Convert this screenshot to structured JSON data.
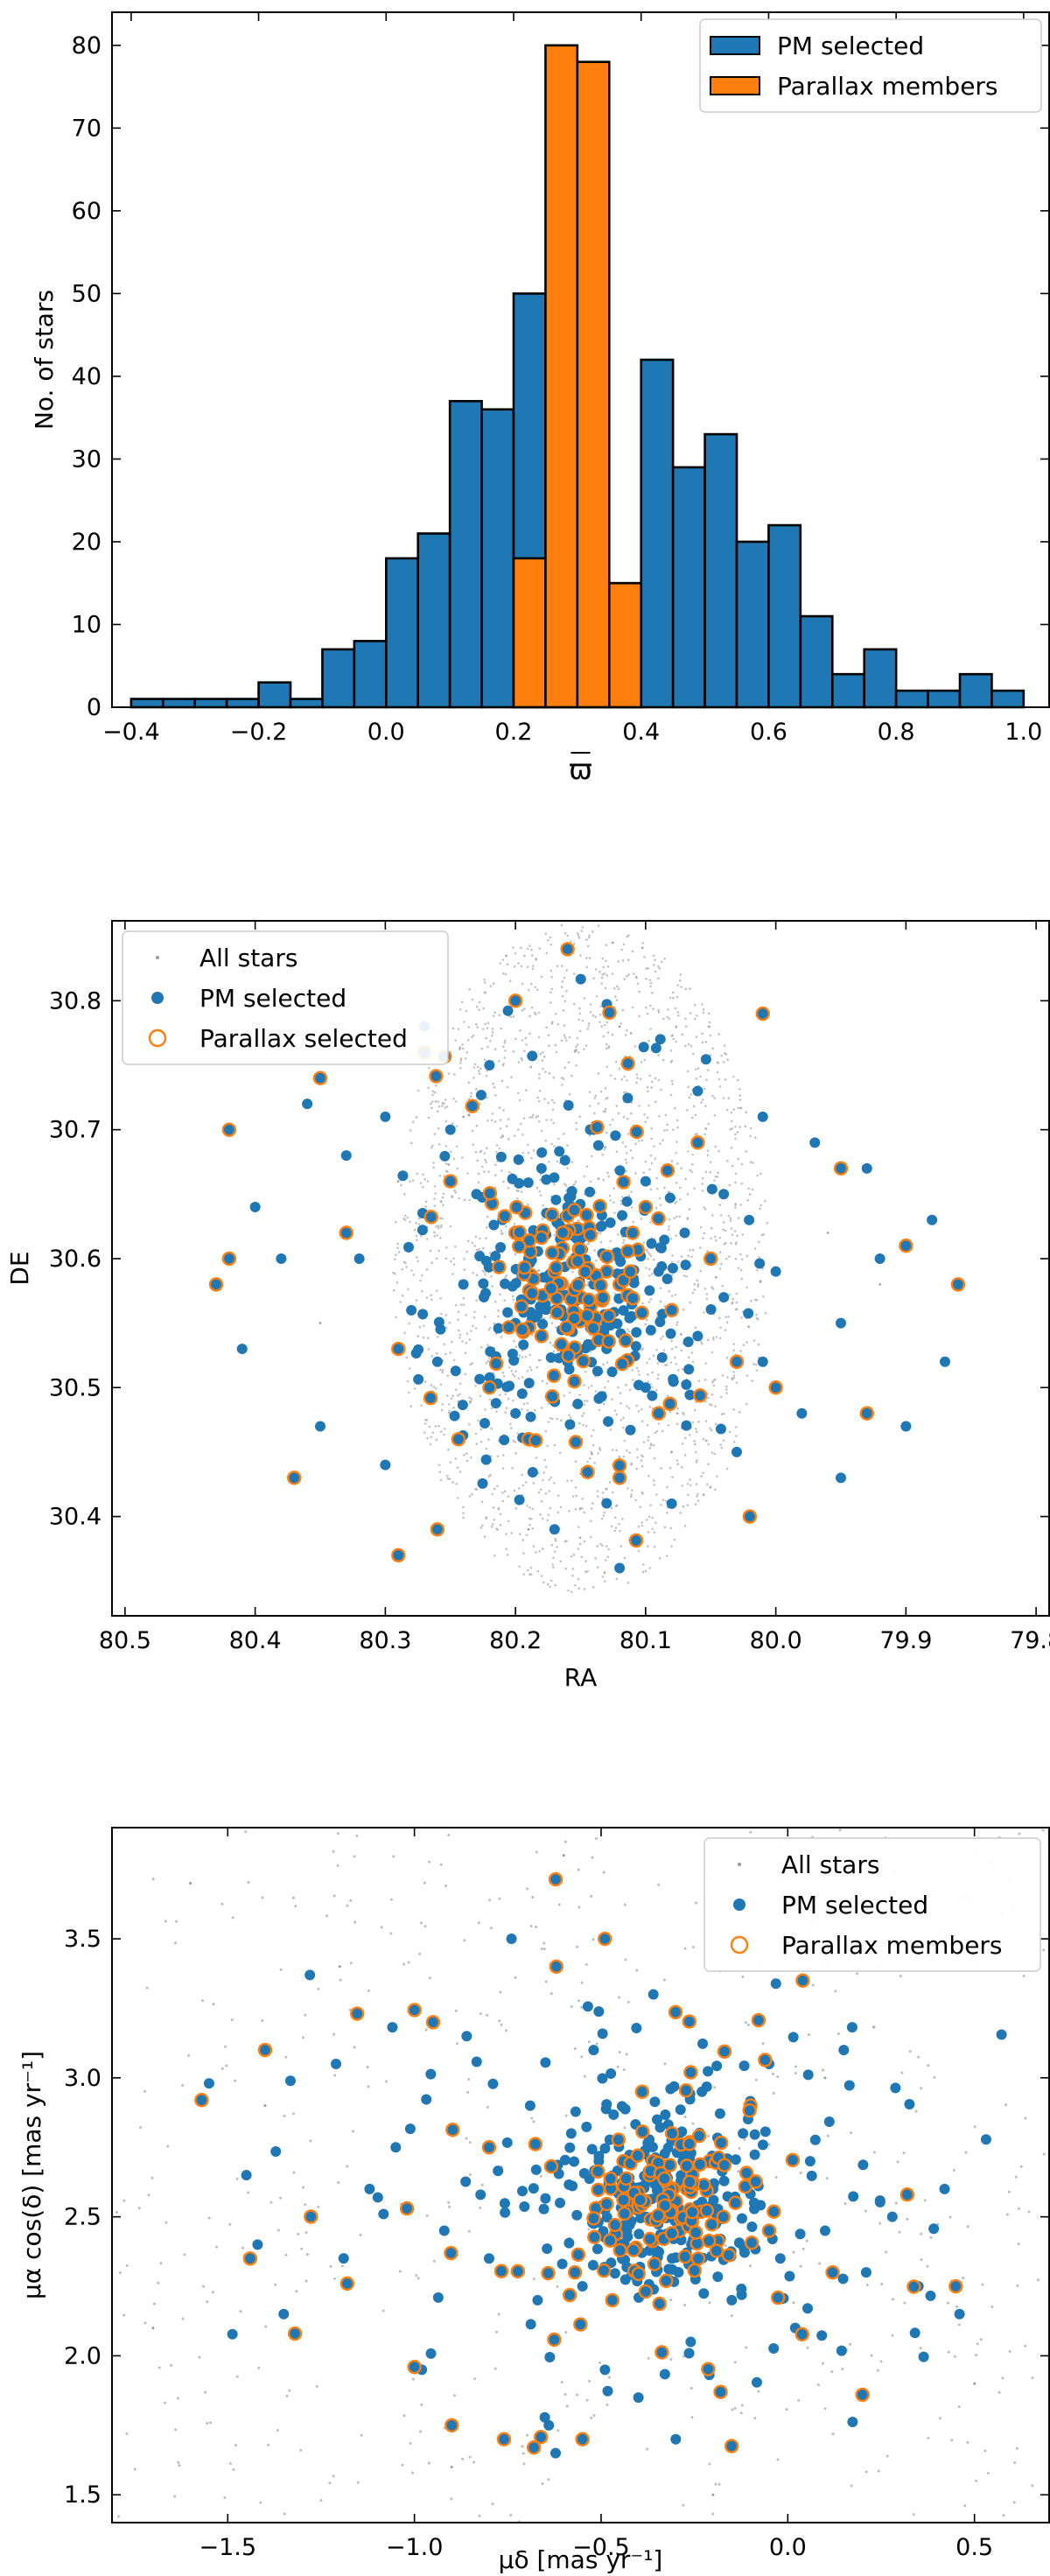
{
  "colors": {
    "blue": "#1f77b4",
    "orange": "#ff7f0e",
    "gray": "#999999"
  },
  "chart_data": [
    {
      "type": "bar",
      "subtype": "histogram",
      "xlabel": "ϖ",
      "ylabel": "No. of stars",
      "xlim": [
        -0.43,
        1.04
      ],
      "ylim": [
        0,
        84
      ],
      "x_ticks": [
        -0.4,
        -0.2,
        0.0,
        0.2,
        0.4,
        0.6,
        0.8,
        1.0
      ],
      "x_tick_labels": [
        "−0.4",
        "−0.2",
        "0.0",
        "0.2",
        "0.4",
        "0.6",
        "0.8",
        "1.0"
      ],
      "y_ticks": [
        0,
        10,
        20,
        30,
        40,
        50,
        60,
        70,
        80
      ],
      "bin_edges": [
        -0.4,
        -0.35,
        -0.3,
        -0.25,
        -0.2,
        -0.15,
        -0.1,
        -0.05,
        0.0,
        0.05,
        0.1,
        0.15,
        0.2,
        0.25,
        0.3,
        0.35,
        0.4,
        0.45,
        0.5,
        0.55,
        0.6,
        0.65,
        0.7,
        0.75,
        0.8,
        0.85,
        0.9,
        0.95,
        1.0
      ],
      "legend_position": "top-right",
      "series": [
        {
          "name": "PM selected",
          "color": "#1f77b4",
          "values": [
            1,
            1,
            1,
            1,
            3,
            1,
            7,
            8,
            18,
            21,
            37,
            36,
            50,
            18,
            15,
            15,
            42,
            29,
            33,
            20,
            22,
            11,
            4,
            7,
            2,
            2,
            4,
            2
          ]
        },
        {
          "name": "Parallax members",
          "color": "#ff7f0e",
          "values": [
            0,
            0,
            0,
            0,
            0,
            0,
            0,
            0,
            0,
            0,
            0,
            0,
            18,
            80,
            78,
            15,
            0,
            0,
            0,
            0,
            0,
            0,
            0,
            0,
            0,
            0,
            0,
            0
          ]
        }
      ]
    },
    {
      "type": "scatter",
      "xlabel": "RA",
      "ylabel": "DE",
      "xlim": [
        80.51,
        79.79
      ],
      "ylim": [
        30.323,
        30.862
      ],
      "x_ticks": [
        80.5,
        80.4,
        80.3,
        80.2,
        80.1,
        80.0,
        79.9,
        79.8
      ],
      "x_tick_labels": [
        "80.5",
        "80.4",
        "80.3",
        "80.2",
        "80.1",
        "80.0",
        "79.9",
        "79.8"
      ],
      "y_ticks": [
        30.4,
        30.5,
        30.6,
        30.7,
        30.8
      ],
      "y_tick_labels": [
        "30.4",
        "30.5",
        "30.6",
        "30.7",
        "30.8"
      ],
      "field_center": [
        80.15,
        30.6
      ],
      "field_radius": [
        0.145,
        0.26
      ],
      "legend_position": "top-left",
      "series": [
        {
          "name": "All stars",
          "marker": "dot",
          "color": "#999999",
          "points": [
            [
              80.24,
              30.71
            ],
            [
              80.08,
              30.45
            ],
            [
              79.96,
              30.62
            ],
            [
              80.35,
              30.55
            ],
            [
              80.12,
              30.78
            ],
            [
              80.19,
              30.39
            ],
            [
              80.01,
              30.52
            ],
            [
              80.29,
              30.66
            ],
            [
              80.15,
              30.6
            ],
            [
              79.92,
              30.58
            ]
          ]
        },
        {
          "name": "PM selected",
          "marker": "filled",
          "color": "#1f77b4",
          "points": [
            [
              80.27,
              30.78
            ],
            [
              80.22,
              30.75
            ],
            [
              80.33,
              30.68
            ],
            [
              80.38,
              30.6
            ],
            [
              80.41,
              30.53
            ],
            [
              80.35,
              30.47
            ],
            [
              80.3,
              30.44
            ],
            [
              80.26,
              30.52
            ],
            [
              80.24,
              30.58
            ],
            [
              80.21,
              30.63
            ],
            [
              80.18,
              30.67
            ],
            [
              80.14,
              30.7
            ],
            [
              80.1,
              30.66
            ],
            [
              80.07,
              30.62
            ],
            [
              80.04,
              30.57
            ],
            [
              80.01,
              30.52
            ],
            [
              79.98,
              30.48
            ],
            [
              79.95,
              30.55
            ],
            [
              79.92,
              30.6
            ],
            [
              79.88,
              30.63
            ],
            [
              79.87,
              30.52
            ],
            [
              79.9,
              30.47
            ],
            [
              79.95,
              30.43
            ],
            [
              80.03,
              30.45
            ],
            [
              80.08,
              30.41
            ],
            [
              80.12,
              30.36
            ],
            [
              80.17,
              30.39
            ],
            [
              80.2,
              30.48
            ],
            [
              80.16,
              30.52
            ],
            [
              80.13,
              30.55
            ],
            [
              80.11,
              30.57
            ],
            [
              80.14,
              30.58
            ],
            [
              80.12,
              30.6
            ],
            [
              80.15,
              30.62
            ],
            [
              80.09,
              30.59
            ],
            [
              80.17,
              30.56
            ],
            [
              80.13,
              30.53
            ],
            [
              80.1,
              30.5
            ],
            [
              80.06,
              30.54
            ],
            [
              80.19,
              30.6
            ],
            [
              80.23,
              30.65
            ],
            [
              80.25,
              30.7
            ],
            [
              80.3,
              30.71
            ],
            [
              80.06,
              30.73
            ],
            [
              80.01,
              30.71
            ],
            [
              79.97,
              30.69
            ],
            [
              79.93,
              30.67
            ],
            [
              80.36,
              30.72
            ],
            [
              80.4,
              30.64
            ],
            [
              80.32,
              30.6
            ],
            [
              80.28,
              30.56
            ],
            [
              80.04,
              30.65
            ],
            [
              80.0,
              30.59
            ],
            [
              80.2,
              30.55
            ],
            [
              80.16,
              30.64
            ]
          ]
        },
        {
          "name": "Parallax selected",
          "marker": "open",
          "color": "#ff7f0e",
          "points": [
            [
              80.16,
              30.84
            ],
            [
              80.2,
              30.8
            ],
            [
              80.01,
              30.79
            ],
            [
              80.35,
              30.74
            ],
            [
              80.27,
              30.76
            ],
            [
              80.42,
              30.7
            ],
            [
              80.42,
              30.6
            ],
            [
              80.43,
              30.58
            ],
            [
              80.37,
              30.43
            ],
            [
              80.29,
              30.37
            ],
            [
              80.26,
              30.39
            ],
            [
              80.12,
              30.43
            ],
            [
              80.02,
              30.4
            ],
            [
              79.93,
              30.48
            ],
            [
              79.86,
              30.58
            ],
            [
              79.9,
              30.61
            ],
            [
              79.95,
              30.67
            ],
            [
              80.15,
              30.57
            ],
            [
              80.13,
              30.59
            ],
            [
              80.14,
              30.55
            ],
            [
              80.11,
              30.62
            ],
            [
              80.17,
              30.59
            ],
            [
              80.12,
              30.58
            ],
            [
              80.1,
              30.64
            ],
            [
              80.18,
              30.54
            ],
            [
              80.08,
              30.56
            ],
            [
              80.2,
              30.62
            ],
            [
              80.05,
              30.6
            ],
            [
              80.22,
              30.5
            ],
            [
              80.03,
              30.52
            ],
            [
              80.25,
              30.66
            ],
            [
              80.06,
              30.69
            ],
            [
              80.19,
              30.46
            ],
            [
              80.09,
              30.48
            ],
            [
              80.33,
              30.62
            ],
            [
              80.29,
              30.53
            ],
            [
              80.0,
              30.5
            ]
          ]
        }
      ]
    },
    {
      "type": "scatter",
      "xlabel": "μδ [mas yr⁻¹]",
      "ylabel": "μα cos(δ) [mas yr⁻¹]",
      "xlim": [
        -1.81,
        0.7
      ],
      "ylim": [
        1.4,
        3.9
      ],
      "x_ticks": [
        -1.5,
        -1.0,
        -0.5,
        0.0,
        0.5
      ],
      "x_tick_labels": [
        "−1.5",
        "−1.0",
        "−0.5",
        "0.0",
        "0.5"
      ],
      "y_ticks": [
        1.5,
        2.0,
        2.5,
        3.0,
        3.5
      ],
      "y_tick_labels": [
        "1.5",
        "2.0",
        "2.5",
        "3.0",
        "3.5"
      ],
      "cluster_center": [
        -0.33,
        2.55
      ],
      "legend_position": "top-right",
      "series": [
        {
          "name": "All stars",
          "marker": "dot",
          "color": "#999999",
          "points": [
            [
              -1.6,
              3.7
            ],
            [
              -1.2,
              3.4
            ],
            [
              -0.9,
              1.6
            ],
            [
              0.3,
              3.6
            ],
            [
              0.5,
              1.9
            ],
            [
              -1.7,
              2.1
            ],
            [
              -0.2,
              1.5
            ],
            [
              0.1,
              3.0
            ],
            [
              -1.4,
              2.9
            ],
            [
              -0.6,
              3.8
            ]
          ]
        },
        {
          "name": "PM selected",
          "marker": "filled",
          "color": "#1f77b4",
          "points": [
            [
              -1.55,
              2.98
            ],
            [
              -1.45,
              2.65
            ],
            [
              -1.42,
              2.4
            ],
            [
              -1.35,
              2.15
            ],
            [
              -1.28,
              3.37
            ],
            [
              -1.21,
              3.05
            ],
            [
              -1.12,
              2.6
            ],
            [
              -1.05,
              2.75
            ],
            [
              -0.98,
              1.95
            ],
            [
              -0.92,
              2.45
            ],
            [
              -0.86,
              3.15
            ],
            [
              -0.8,
              2.35
            ],
            [
              -0.74,
              3.5
            ],
            [
              -0.69,
              2.9
            ],
            [
              -0.64,
              1.75
            ],
            [
              -0.61,
              2.55
            ],
            [
              -0.55,
              2.25
            ],
            [
              -0.52,
              3.1
            ],
            [
              -0.48,
              2.62
            ],
            [
              -0.45,
              2.4
            ],
            [
              -0.42,
              2.7
            ],
            [
              -0.38,
              2.5
            ],
            [
              -0.35,
              2.85
            ],
            [
              -0.33,
              2.58
            ],
            [
              -0.31,
              2.35
            ],
            [
              -0.28,
              2.72
            ],
            [
              -0.26,
              2.05
            ],
            [
              -0.23,
              2.95
            ],
            [
              -0.2,
              2.6
            ],
            [
              -0.18,
              2.42
            ],
            [
              -0.15,
              2.2
            ],
            [
              -0.12,
              2.8
            ],
            [
              -0.09,
              2.55
            ],
            [
              -0.05,
              3.05
            ],
            [
              -0.02,
              2.35
            ],
            [
              0.02,
              2.1
            ],
            [
              0.06,
              2.7
            ],
            [
              0.1,
              2.45
            ],
            [
              0.15,
              3.1
            ],
            [
              0.21,
              2.3
            ],
            [
              0.28,
              2.5
            ],
            [
              0.35,
              2.25
            ],
            [
              0.42,
              2.6
            ],
            [
              0.46,
              2.15
            ],
            [
              -0.4,
              1.85
            ],
            [
              -0.36,
              3.3
            ],
            [
              -0.3,
              1.7
            ],
            [
              -0.67,
              2.2
            ],
            [
              -0.58,
              2.8
            ],
            [
              -0.25,
              2.5
            ]
          ]
        },
        {
          "name": "Parallax members",
          "marker": "open",
          "color": "#ff7f0e",
          "points": [
            [
              -1.57,
              2.92
            ],
            [
              -1.4,
              3.1
            ],
            [
              -1.44,
              2.35
            ],
            [
              -1.32,
              2.08
            ],
            [
              -1.18,
              2.26
            ],
            [
              -1.02,
              2.53
            ],
            [
              -1.0,
              1.96
            ],
            [
              -0.95,
              3.2
            ],
            [
              -0.9,
              1.75
            ],
            [
              -0.8,
              2.75
            ],
            [
              -0.76,
              1.7
            ],
            [
              -0.68,
              1.67
            ],
            [
              -0.62,
              3.4
            ],
            [
              -0.55,
              1.7
            ],
            [
              -0.49,
              3.5
            ],
            [
              -0.44,
              2.7
            ],
            [
              -0.4,
              2.55
            ],
            [
              -0.37,
              2.65
            ],
            [
              -0.34,
              2.5
            ],
            [
              -0.31,
              2.8
            ],
            [
              -0.29,
              2.45
            ],
            [
              -0.27,
              2.6
            ],
            [
              -0.24,
              2.35
            ],
            [
              -0.21,
              2.7
            ],
            [
              -0.18,
              1.87
            ],
            [
              -0.14,
              2.55
            ],
            [
              -0.1,
              2.9
            ],
            [
              -0.05,
              2.45
            ],
            [
              0.04,
              3.35
            ],
            [
              0.12,
              2.3
            ],
            [
              0.2,
              1.86
            ],
            [
              0.32,
              2.58
            ],
            [
              0.45,
              2.25
            ],
            [
              -0.57,
              2.3
            ],
            [
              -0.47,
              2.2
            ],
            [
              -0.39,
              2.95
            ],
            [
              -0.26,
              3.02
            ]
          ]
        }
      ]
    }
  ]
}
